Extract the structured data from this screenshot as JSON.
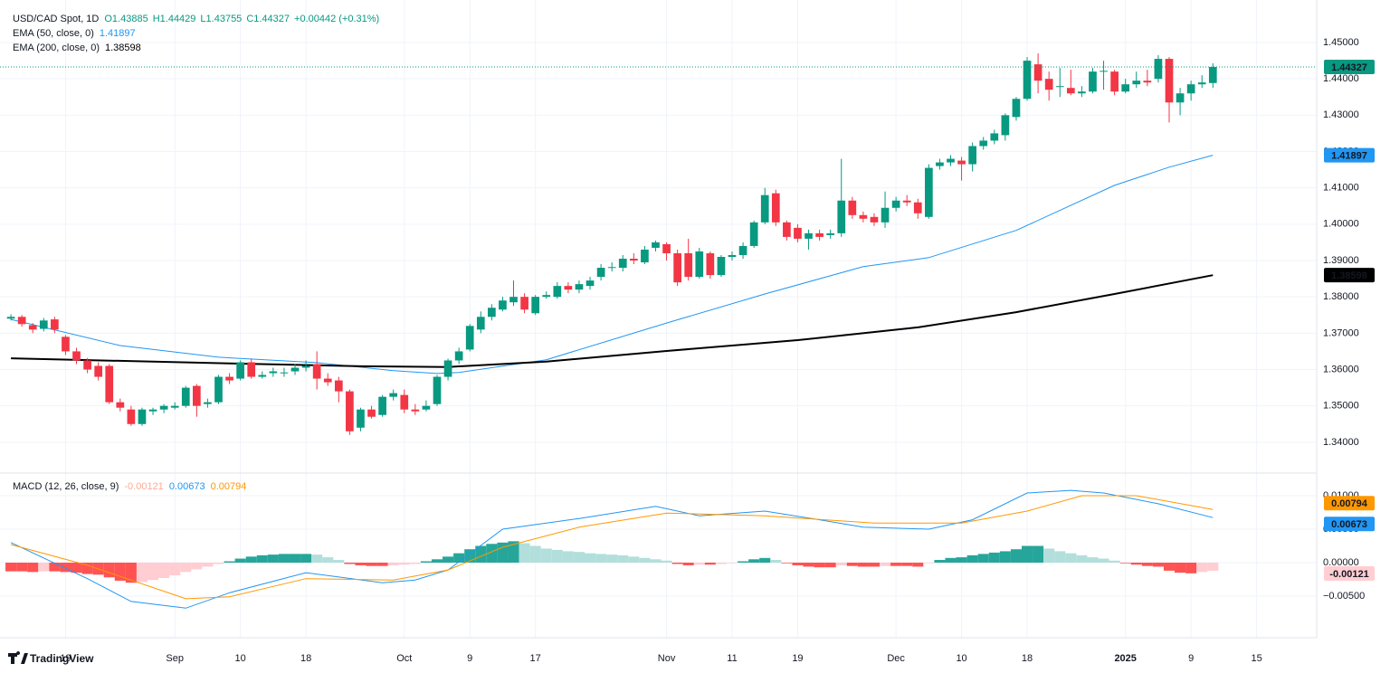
{
  "chart_data": [
    {
      "type": "candlestick",
      "title": "USD/CAD Spot, 1D",
      "ohlc_labels": [
        "O1.43885",
        "H1.44429",
        "L1.43755",
        "C1.44327"
      ],
      "change": "+0.00442 (+0.31%)",
      "xlim": [
        -1,
        119.5
      ],
      "xticks": [
        {
          "value": 5,
          "label": "19"
        },
        {
          "value": 15,
          "label": "Sep"
        },
        {
          "value": 21,
          "label": "10"
        },
        {
          "value": 27,
          "label": "18"
        },
        {
          "value": 36,
          "label": "Oct"
        },
        {
          "value": 42,
          "label": "9"
        },
        {
          "value": 48,
          "label": "17"
        },
        {
          "value": 60,
          "label": "Nov"
        },
        {
          "value": 66,
          "label": "11"
        },
        {
          "value": 72,
          "label": "19"
        },
        {
          "value": 81,
          "label": "Dec"
        },
        {
          "value": 87,
          "label": "10"
        },
        {
          "value": 93,
          "label": "18"
        },
        {
          "value": 102,
          "label": "2025"
        },
        {
          "value": 108,
          "label": "9"
        },
        {
          "value": 114,
          "label": "15"
        }
      ],
      "ylim": [
        1.3315,
        1.4617
      ],
      "yticks": [
        {
          "value": 1.34,
          "label": "1.34000"
        },
        {
          "value": 1.35,
          "label": "1.35000"
        },
        {
          "value": 1.36,
          "label": "1.36000"
        },
        {
          "value": 1.37,
          "label": "1.37000"
        },
        {
          "value": 1.38,
          "label": "1.38000"
        },
        {
          "value": 1.39,
          "label": "1.39000"
        },
        {
          "value": 1.4,
          "label": "1.40000"
        },
        {
          "value": 1.41,
          "label": "1.41000"
        },
        {
          "value": 1.42,
          "label": "1.42000"
        },
        {
          "value": 1.43,
          "label": "1.43000"
        },
        {
          "value": 1.44,
          "label": "1.44000"
        },
        {
          "value": 1.45,
          "label": "1.45000"
        }
      ],
      "grid": true,
      "up_color": "#089981",
      "down_color": "#f23645",
      "open": [
        1.374,
        1.3745,
        1.3722,
        1.3712,
        1.3738,
        1.369,
        1.365,
        1.3625,
        1.361,
        1.361,
        1.351,
        1.349,
        1.345,
        1.3485,
        1.349,
        1.3495,
        1.35,
        1.3555,
        1.3505,
        1.351,
        1.358,
        1.3575,
        1.362,
        1.358,
        1.359,
        1.359,
        1.3595,
        1.3605,
        1.3615,
        1.3575,
        1.357,
        1.354,
        1.344,
        1.349,
        1.3475,
        1.3525,
        1.353,
        1.349,
        1.349,
        1.3505,
        1.358,
        1.3625,
        1.3655,
        1.371,
        1.3745,
        1.3765,
        1.3785,
        1.38,
        1.3755,
        1.38,
        1.38,
        1.383,
        1.382,
        1.383,
        1.3855,
        1.388,
        1.388,
        1.3905,
        1.3895,
        1.3935,
        1.3945,
        1.392,
        1.392,
        1.3855,
        1.392,
        1.386,
        1.391,
        1.3915,
        1.394,
        1.4005,
        1.4085,
        1.4005,
        1.399,
        1.396,
        1.3975,
        1.397,
        1.3975,
        1.4065,
        1.4025,
        1.402,
        1.4005,
        1.4045,
        1.4065,
        1.406,
        1.402,
        1.416,
        1.417,
        1.4175,
        1.4165,
        1.4215,
        1.423,
        1.4245,
        1.4295,
        1.4345,
        1.444,
        1.44,
        1.438,
        1.4375,
        1.436,
        1.4365,
        1.442,
        1.442,
        1.4365,
        1.4385,
        1.4395,
        1.44,
        1.4455,
        1.4335,
        1.436,
        1.4385,
        1.43885
      ],
      "high": [
        1.3752,
        1.375,
        1.3728,
        1.3742,
        1.3745,
        1.3695,
        1.366,
        1.3632,
        1.362,
        1.3615,
        1.352,
        1.35,
        1.3495,
        1.3495,
        1.3505,
        1.351,
        1.3555,
        1.356,
        1.352,
        1.3585,
        1.359,
        1.3625,
        1.363,
        1.3595,
        1.3605,
        1.3605,
        1.3615,
        1.3625,
        1.365,
        1.359,
        1.358,
        1.3545,
        1.3495,
        1.35,
        1.353,
        1.3545,
        1.3545,
        1.3505,
        1.3515,
        1.3585,
        1.363,
        1.366,
        1.3725,
        1.376,
        1.378,
        1.38,
        1.3845,
        1.381,
        1.3805,
        1.3815,
        1.384,
        1.384,
        1.3845,
        1.3855,
        1.389,
        1.3895,
        1.3915,
        1.392,
        1.394,
        1.3955,
        1.395,
        1.393,
        1.396,
        1.3935,
        1.3925,
        1.3915,
        1.3925,
        1.395,
        1.401,
        1.41,
        1.4095,
        1.401,
        1.4,
        1.3985,
        1.3985,
        1.3985,
        1.418,
        1.4075,
        1.4035,
        1.403,
        1.409,
        1.4075,
        1.408,
        1.407,
        1.4165,
        1.418,
        1.419,
        1.4185,
        1.4225,
        1.424,
        1.426,
        1.4305,
        1.435,
        1.446,
        1.447,
        1.442,
        1.443,
        1.4425,
        1.438,
        1.443,
        1.445,
        1.4425,
        1.44,
        1.442,
        1.4425,
        1.4465,
        1.446,
        1.4375,
        1.4395,
        1.441,
        1.44429
      ],
      "low": [
        1.3735,
        1.3718,
        1.37,
        1.3705,
        1.37,
        1.364,
        1.3615,
        1.359,
        1.357,
        1.3505,
        1.3485,
        1.3445,
        1.3445,
        1.3475,
        1.348,
        1.349,
        1.3495,
        1.347,
        1.3495,
        1.3505,
        1.356,
        1.357,
        1.3575,
        1.3575,
        1.358,
        1.358,
        1.3585,
        1.3595,
        1.3545,
        1.3555,
        1.351,
        1.342,
        1.343,
        1.3465,
        1.347,
        1.3515,
        1.348,
        1.3475,
        1.3485,
        1.35,
        1.357,
        1.3615,
        1.365,
        1.37,
        1.3735,
        1.376,
        1.3775,
        1.3755,
        1.375,
        1.3795,
        1.3795,
        1.381,
        1.381,
        1.382,
        1.3845,
        1.387,
        1.387,
        1.389,
        1.389,
        1.3925,
        1.39,
        1.383,
        1.3845,
        1.385,
        1.385,
        1.3855,
        1.39,
        1.3905,
        1.3935,
        1.4,
        1.3995,
        1.3955,
        1.395,
        1.393,
        1.3955,
        1.396,
        1.3965,
        1.4015,
        1.4005,
        1.3995,
        1.399,
        1.4035,
        1.405,
        1.4015,
        1.4015,
        1.415,
        1.416,
        1.412,
        1.4145,
        1.4205,
        1.422,
        1.423,
        1.4285,
        1.434,
        1.436,
        1.434,
        1.435,
        1.4355,
        1.435,
        1.436,
        1.437,
        1.4355,
        1.436,
        1.4375,
        1.438,
        1.439,
        1.428,
        1.43,
        1.434,
        1.4375,
        1.43755
      ],
      "close": [
        1.3745,
        1.3725,
        1.371,
        1.3735,
        1.371,
        1.365,
        1.3625,
        1.36,
        1.358,
        1.351,
        1.3495,
        1.345,
        1.349,
        1.349,
        1.35,
        1.35,
        1.355,
        1.35,
        1.351,
        1.358,
        1.357,
        1.362,
        1.358,
        1.3585,
        1.3595,
        1.3592,
        1.3605,
        1.361,
        1.3575,
        1.3565,
        1.354,
        1.343,
        1.349,
        1.347,
        1.3525,
        1.3535,
        1.349,
        1.3485,
        1.35,
        1.358,
        1.3625,
        1.365,
        1.372,
        1.3745,
        1.377,
        1.379,
        1.38,
        1.3765,
        1.38,
        1.3805,
        1.383,
        1.382,
        1.3835,
        1.3845,
        1.388,
        1.3882,
        1.3905,
        1.39,
        1.393,
        1.395,
        1.392,
        1.384,
        1.3855,
        1.3925,
        1.386,
        1.391,
        1.3915,
        1.394,
        1.4005,
        1.408,
        1.4005,
        1.3965,
        1.396,
        1.3975,
        1.3965,
        1.3975,
        1.4065,
        1.4025,
        1.4015,
        1.4005,
        1.4045,
        1.4065,
        1.406,
        1.403,
        1.4155,
        1.417,
        1.418,
        1.4165,
        1.4215,
        1.423,
        1.425,
        1.43,
        1.4345,
        1.445,
        1.4395,
        1.437,
        1.438,
        1.436,
        1.4365,
        1.442,
        1.4422,
        1.4365,
        1.4385,
        1.4395,
        1.439,
        1.4455,
        1.4335,
        1.436,
        1.4385,
        1.439,
        1.44327
      ],
      "last_price_color": "#089981",
      "series": [
        {
          "name": "EMA (50, close, 0)",
          "color": "#2196f3",
          "tag_text_color": "#ffffff",
          "width": 1,
          "x": [
            0,
            10,
            19,
            28,
            35,
            39,
            41,
            49,
            60,
            69,
            78,
            84,
            92,
            101,
            106,
            110
          ],
          "values": [
            1.3738,
            1.3666,
            1.3634,
            1.3619,
            1.3597,
            1.3589,
            1.3592,
            1.3627,
            1.3728,
            1.3808,
            1.3883,
            1.3908,
            1.3983,
            1.4107,
            1.4157,
            1.41897
          ]
        },
        {
          "name": "EMA (200, close, 0)",
          "color": "#000000",
          "tag_text_color": "#ffffff",
          "width": 2,
          "x": [
            0,
            7,
            20,
            32,
            40,
            49,
            60,
            72,
            83,
            92,
            101,
            110
          ],
          "values": [
            1.3631,
            1.3626,
            1.3617,
            1.3609,
            1.3607,
            1.3622,
            1.3651,
            1.3681,
            1.3716,
            1.3758,
            1.3808,
            1.38598
          ]
        }
      ]
    },
    {
      "type": "macd",
      "title": "MACD (12, 26, close, 9)",
      "ylim": [
        -0.01122,
        0.01338
      ],
      "yticks": [
        {
          "value": -0.005,
          "label": "−0.00500"
        },
        {
          "value": 0,
          "label": "0.00000"
        },
        {
          "value": 0.005,
          "label": "0.00500"
        },
        {
          "value": 0.01,
          "label": "0.01000"
        }
      ],
      "histogram_colors": [
        "#26a69a",
        "#b2dfdb",
        "#ff5252",
        "#ffcdd2"
      ],
      "histogram": [
        -0.0013,
        -0.0013,
        -0.0014,
        -0.0013,
        -0.0013,
        -0.0014,
        -0.0015,
        -0.0017,
        -0.0018,
        -0.0022,
        -0.0027,
        -0.003,
        -0.0029,
        -0.0026,
        -0.0023,
        -0.0019,
        -0.0014,
        -0.001,
        -0.0006,
        -0.0002,
        0.0002,
        0.0006,
        0.0009,
        0.0011,
        0.0012,
        0.0013,
        0.0013,
        0.0013,
        0.0012,
        0.0008,
        0.0004,
        -0.0002,
        -0.0004,
        -0.0005,
        -0.0005,
        -0.0004,
        -0.0003,
        -0.0002,
        0.0002,
        0.0005,
        0.0009,
        0.0014,
        0.002,
        0.0025,
        0.0028,
        0.003,
        0.0032,
        0.0029,
        0.0025,
        0.0021,
        0.0019,
        0.0017,
        0.0016,
        0.0014,
        0.0013,
        0.0012,
        0.0011,
        0.0009,
        0.0007,
        0.0005,
        0.0003,
        -0.0002,
        -0.0004,
        -0.0003,
        -0.0003,
        -0.0002,
        -0.0001,
        0.0002,
        0.0005,
        0.0007,
        0.0004,
        -0.0001,
        -0.0004,
        -0.0006,
        -0.0007,
        -0.0007,
        -0.0004,
        -0.0005,
        -0.0006,
        -0.0006,
        -0.0005,
        -0.0005,
        -0.0005,
        -0.0006,
        -0.0001,
        0.0004,
        0.0007,
        0.0008,
        0.0011,
        0.0013,
        0.0015,
        0.0017,
        0.002,
        0.0025,
        0.0025,
        0.0021,
        0.0017,
        0.0014,
        0.0011,
        0.0008,
        0.0006,
        0.0003,
        -0.0001,
        -0.0003,
        -0.0005,
        -0.0006,
        -0.0012,
        -0.0015,
        -0.0016,
        -0.0014,
        -0.00121
      ],
      "histogram_tag_color": "#ffcdd2",
      "histogram_tag_text_color": "#f23645",
      "series": [
        {
          "name": "MACD",
          "color": "#2196f3",
          "tag_text_color": "#ffffff",
          "x": [
            0,
            7,
            11,
            16,
            20,
            27,
            34,
            37,
            40,
            45,
            52,
            59,
            63,
            69,
            74,
            78,
            84,
            88,
            93,
            97,
            100,
            105,
            110
          ],
          "values": [
            0.003,
            -0.0024,
            -0.0058,
            -0.0068,
            -0.0045,
            -0.0015,
            -0.003,
            -0.0026,
            -0.0011,
            0.005,
            0.0066,
            0.0084,
            0.007,
            0.0077,
            0.0064,
            0.0053,
            0.005,
            0.0064,
            0.0104,
            0.0108,
            0.0104,
            0.0088,
            0.00673
          ]
        },
        {
          "name": "Signal",
          "color": "#ff9800",
          "tag_text_color": "#ffffff",
          "x": [
            0,
            7,
            16,
            20,
            27,
            35,
            40,
            45,
            52,
            60,
            69,
            79,
            87,
            93,
            98,
            103,
            110
          ],
          "values": [
            0.0027,
            -0.0004,
            -0.0054,
            -0.0051,
            -0.0024,
            -0.0026,
            -0.0011,
            0.0023,
            0.0053,
            0.0074,
            0.007,
            0.0059,
            0.0059,
            0.0077,
            0.01,
            0.01,
            0.00794
          ]
        }
      ]
    },
    {
      "type": "brand",
      "title": "TradingView"
    }
  ]
}
